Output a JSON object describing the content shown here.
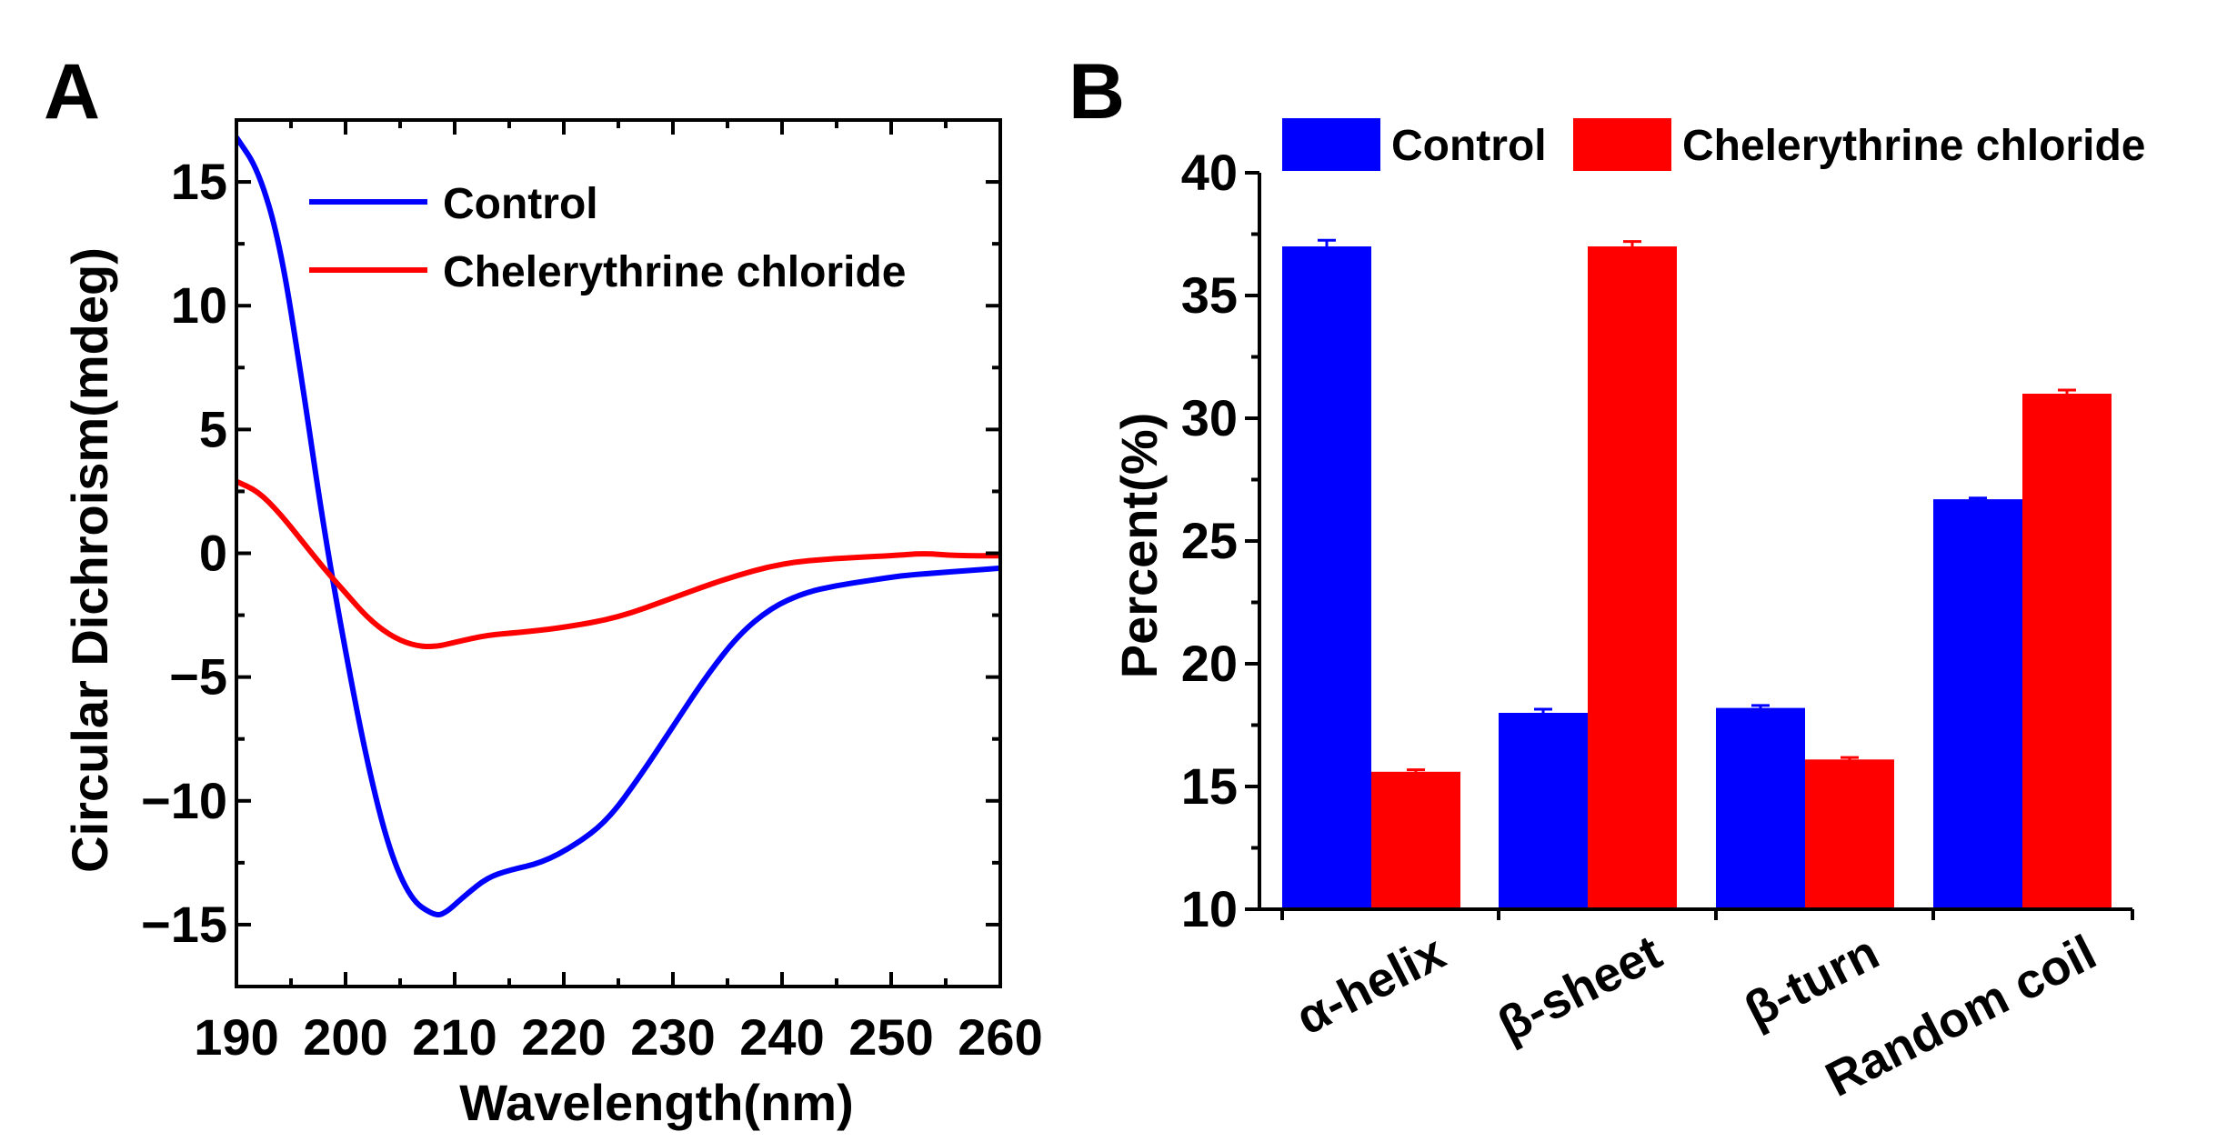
{
  "chart_data": [
    {
      "panel": "A",
      "type": "line",
      "xlabel": "Wavelength(nm)",
      "ylabel": "Circular Dichroism(mdeg)",
      "xlim": [
        190,
        260
      ],
      "ylim": [
        -17.5,
        17.5
      ],
      "xticks": [
        190,
        200,
        210,
        220,
        230,
        240,
        250,
        260
      ],
      "yticks": [
        -15,
        -10,
        -5,
        0,
        5,
        10,
        15
      ],
      "ytick_labels": [
        "−15",
        "−10",
        "−5",
        "0",
        "5",
        "10",
        "15"
      ],
      "legend": "top-left",
      "series": [
        {
          "name": "Control",
          "color": "#0000ff",
          "x": [
            190,
            192,
            194,
            196,
            198,
            200,
            202,
            204,
            206,
            208,
            209,
            211,
            213,
            215,
            218,
            221,
            224,
            227,
            230,
            233,
            236,
            239,
            242,
            245,
            248,
            251,
            254,
            257,
            260
          ],
          "y": [
            16.8,
            15.5,
            12.5,
            7.0,
            1.0,
            -4.0,
            -8.5,
            -12.0,
            -14.0,
            -14.6,
            -14.6,
            -13.8,
            -13.1,
            -12.8,
            -12.5,
            -11.8,
            -10.8,
            -9.0,
            -7.0,
            -5.0,
            -3.3,
            -2.2,
            -1.6,
            -1.3,
            -1.1,
            -0.9,
            -0.8,
            -0.7,
            -0.6
          ]
        },
        {
          "name": "Chelerythrine chloride",
          "color": "#ff0000",
          "x": [
            190,
            192,
            194,
            196,
            198,
            200,
            202,
            204,
            206,
            208,
            210,
            213,
            216,
            220,
            225,
            230,
            235,
            240,
            245,
            250,
            253,
            256,
            260
          ],
          "y": [
            2.9,
            2.5,
            1.6,
            0.5,
            -0.6,
            -1.6,
            -2.6,
            -3.3,
            -3.7,
            -3.8,
            -3.6,
            -3.3,
            -3.2,
            -3.0,
            -2.6,
            -1.8,
            -1.0,
            -0.4,
            -0.2,
            -0.1,
            0.0,
            -0.1,
            -0.1
          ]
        }
      ]
    },
    {
      "panel": "B",
      "type": "bar",
      "ylabel": "Percent(%)",
      "ylim": [
        10,
        40
      ],
      "yticks": [
        10,
        15,
        20,
        25,
        30,
        35,
        40
      ],
      "categories": [
        "α-helix",
        "β-sheet",
        "β-turn",
        "Random coil"
      ],
      "legend": "top",
      "series": [
        {
          "name": "Control",
          "color": "#0000ff",
          "values": [
            37.0,
            18.0,
            18.2,
            26.7
          ],
          "errors": [
            0.25,
            0.15,
            0.1,
            0.05
          ]
        },
        {
          "name": "Chelerythrine chloride",
          "color": "#ff0000",
          "values": [
            15.6,
            37.0,
            16.1,
            31.0
          ],
          "errors": [
            0.08,
            0.2,
            0.08,
            0.15
          ]
        }
      ]
    }
  ]
}
